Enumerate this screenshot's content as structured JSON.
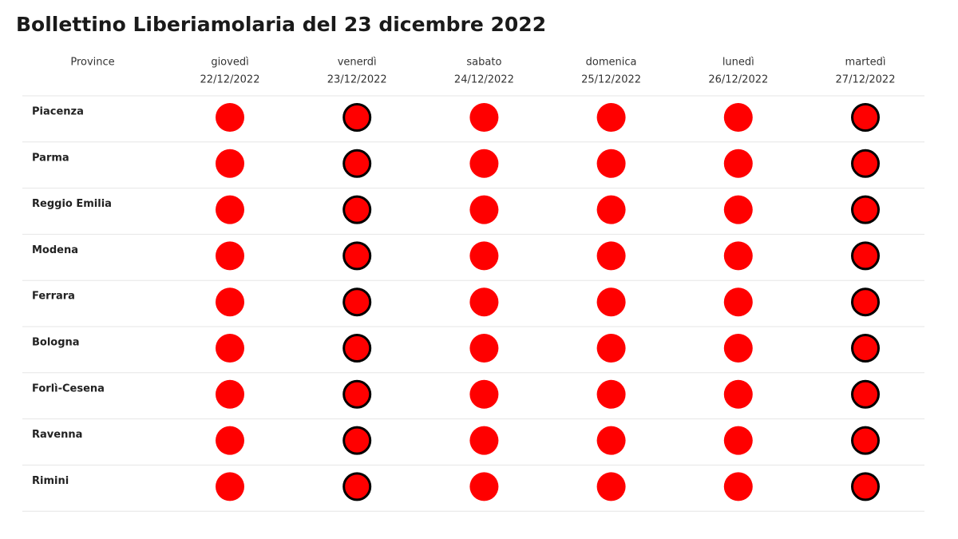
{
  "title": "Bollettino Liberiamolaria del 23 dicembre 2022",
  "table": {
    "corner": "Province",
    "columns": [
      {
        "day": "giovedì",
        "date": "22/12/2022"
      },
      {
        "day": "venerdì",
        "date": "23/12/2022"
      },
      {
        "day": "sabato",
        "date": "24/12/2022"
      },
      {
        "day": "domenica",
        "date": "25/12/2022"
      },
      {
        "day": "lunedì",
        "date": "26/12/2022"
      },
      {
        "day": "martedì",
        "date": "27/12/2022"
      }
    ],
    "rows": [
      "Piacenza",
      "Parma",
      "Reggio Emilia",
      "Modena",
      "Ferrara",
      "Bologna",
      "Forlì-Cesena",
      "Ravenna",
      "Rimini"
    ]
  }
}
